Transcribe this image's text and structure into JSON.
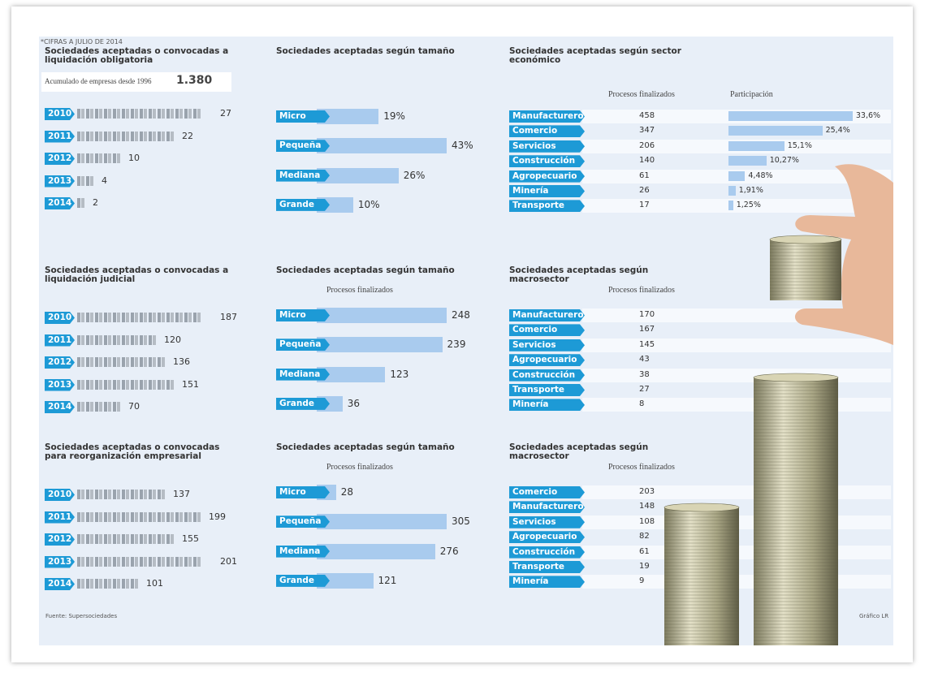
{
  "note": "*CIFRAS A JULIO DE 2014",
  "source": "Fuente: Supersociedades",
  "credit": "Gráfico LR",
  "chart_data": [
    {
      "type": "pictogram",
      "title": "Sociedades aceptadas o convocadas a liquidación obligatoria",
      "subtitle": "Acumulado de empresas desde 1996",
      "total": "1.380",
      "categories": [
        "2010",
        "2011",
        "2012",
        "2013",
        "2014"
      ],
      "values": [
        27,
        22,
        10,
        4,
        2
      ]
    },
    {
      "type": "bar",
      "title": "Sociedades aceptadas según tamaño",
      "color": "#a9cbee",
      "categories": [
        "Micro",
        "Pequeña",
        "Mediana",
        "Grande"
      ],
      "values": [
        19,
        43,
        26,
        10
      ],
      "value_labels": [
        "19%",
        "43%",
        "26%",
        "10%"
      ]
    },
    {
      "type": "table",
      "title": "Sociedades aceptadas según sector económico",
      "columns": [
        "Procesos finalizados",
        "Participación"
      ],
      "color": "#a9cbee",
      "categories": [
        "Manufacturero",
        "Comercio",
        "Servicios",
        "Construcción",
        "Agropecuario",
        "Minería",
        "Transporte"
      ],
      "values": [
        458,
        347,
        206,
        140,
        61,
        26,
        17
      ],
      "shares": [
        33.6,
        25.4,
        15.1,
        10.27,
        4.48,
        1.91,
        1.25
      ],
      "share_labels": [
        "33,6%",
        "25,4%",
        "15,1%",
        "10,27%",
        "4,48%",
        "1,91%",
        "1,25%"
      ]
    },
    {
      "type": "pictogram",
      "title": "Sociedades aceptadas o convocadas a liquidación judicial",
      "categories": [
        "2010",
        "2011",
        "2012",
        "2013",
        "2014"
      ],
      "values": [
        187,
        120,
        136,
        151,
        70
      ]
    },
    {
      "type": "bar",
      "title": "Sociedades aceptadas según tamaño",
      "subtitle": "Procesos finalizados",
      "color": "#a9cbee",
      "categories": [
        "Micro",
        "Pequeña",
        "Mediana",
        "Grande"
      ],
      "values": [
        248,
        239,
        123,
        36
      ]
    },
    {
      "type": "table",
      "title": "Sociedades aceptadas según macrosector",
      "subtitle": "Procesos finalizados",
      "categories": [
        "Manufacturero",
        "Comercio",
        "Servicios",
        "Agropecuario",
        "Construcción",
        "Transporte",
        "Minería"
      ],
      "values": [
        170,
        167,
        145,
        43,
        38,
        27,
        8
      ]
    },
    {
      "type": "pictogram",
      "title": "Sociedades aceptadas o convocadas para reorganización empresarial",
      "categories": [
        "2010",
        "2011",
        "2012",
        "2013",
        "2014"
      ],
      "values": [
        137,
        199,
        155,
        201,
        101
      ]
    },
    {
      "type": "bar",
      "title": "Sociedades aceptadas según tamaño",
      "subtitle": "Procesos finalizados",
      "color": "#a9cbee",
      "categories": [
        "Micro",
        "Pequeña",
        "Mediana",
        "Grande"
      ],
      "values": [
        28,
        305,
        276,
        121
      ]
    },
    {
      "type": "table",
      "title": "Sociedades aceptadas según macrosector",
      "subtitle": "Procesos finalizados",
      "categories": [
        "Comercio",
        "Manufacturero",
        "Servicios",
        "Agropecuario",
        "Construcción",
        "Transporte",
        "Minería"
      ],
      "values": [
        203,
        148,
        108,
        82,
        61,
        19,
        9
      ]
    }
  ]
}
